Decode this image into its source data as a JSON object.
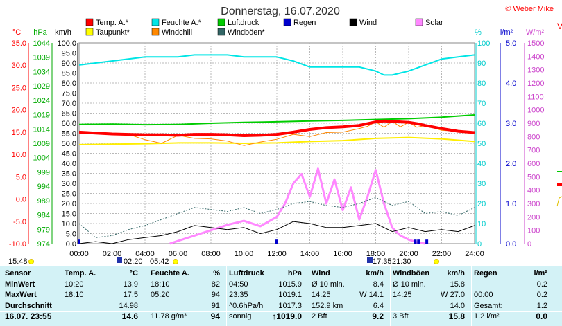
{
  "title": "Donnerstag, 16.07.2020",
  "copyright": "© Weber Mike",
  "edge_label": "V",
  "axes": {
    "temp": {
      "unit": "°C",
      "ticks": [
        "35.0",
        "30.0",
        "25.0",
        "20.0",
        "15.0",
        "10.0",
        "5.0",
        "0.0",
        "-5.0",
        "-10.0"
      ],
      "color": "#ff0000"
    },
    "press": {
      "unit": "hPa",
      "ticks": [
        "1044",
        "1039",
        "1034",
        "1029",
        "1024",
        "1019",
        "1014",
        "1009",
        "1004",
        "999",
        "994",
        "989",
        "984",
        "979",
        "974"
      ],
      "color": "#00aa00"
    },
    "wind": {
      "unit": "km/h",
      "ticks": [
        "100.0",
        "95.0",
        "90.0",
        "85.0",
        "80.0",
        "75.0",
        "70.0",
        "65.0",
        "60.0",
        "55.0",
        "50.0",
        "45.0",
        "40.0",
        "35.0",
        "30.0",
        "25.0",
        "20.0",
        "15.0",
        "10.0",
        "5.0",
        "0.0"
      ],
      "color": "#000000"
    },
    "hum": {
      "unit": "%",
      "ticks": [
        "100",
        "90",
        "80",
        "70",
        "60",
        "50",
        "40",
        "30",
        "20",
        "10",
        "0"
      ],
      "color": "#00cccc"
    },
    "rain": {
      "unit": "l/m²",
      "ticks": [
        "5.0",
        "4.0",
        "3.0",
        "2.0",
        "1.0",
        "0.0"
      ],
      "color": "#0000cc"
    },
    "solar": {
      "unit": "W/m²",
      "ticks": [
        "1500",
        "1400",
        "1300",
        "1200",
        "1100",
        "1000",
        "900",
        "800",
        "700",
        "600",
        "500",
        "400",
        "300",
        "200",
        "100",
        "0"
      ],
      "color": "#cc44cc"
    }
  },
  "legend": [
    {
      "label": "Temp. A.*",
      "color": "#ff0000",
      "text_color": "#ff0000"
    },
    {
      "label": "Feuchte A.*",
      "color": "#00e5e5",
      "text_color": "#00cccc"
    },
    {
      "label": "Luftdruck",
      "color": "#00cc00",
      "text_color": "#00aa00"
    },
    {
      "label": "Regen",
      "color": "#0000cc",
      "text_color": "#0000cc"
    },
    {
      "label": "Wind",
      "color": "#000000",
      "text_color": "#000000"
    },
    {
      "label": "Solar",
      "color": "#ff88ff",
      "text_color": "#cc44cc"
    },
    {
      "label": "Taupunkt*",
      "color": "#ffff00",
      "text_color": "#ff0000"
    },
    {
      "label": "Windchill",
      "color": "#ff8800",
      "text_color": "#ff0000"
    },
    {
      "label": "Windböen*",
      "color": "#336666",
      "text_color": "#000000"
    }
  ],
  "xticks": [
    "00:00",
    "02:00",
    "04:00",
    "06:00",
    "08:00",
    "10:00",
    "12:00",
    "14:00",
    "16:00",
    "18:00",
    "20:00",
    "22:00",
    "24:00"
  ],
  "markers": [
    "15:48",
    "02:20",
    "05:42",
    "17:35",
    "21:30"
  ],
  "chart_data": {
    "type": "line",
    "x_unit": "hours",
    "xlim": [
      0,
      24
    ],
    "series": [
      {
        "name": "Temp. A.*",
        "axis": "°C",
        "x": [
          0,
          1,
          2,
          3,
          4,
          5,
          6,
          7,
          8,
          9,
          10,
          11,
          12,
          13,
          14,
          15,
          16,
          17,
          17.5,
          18,
          18.5,
          19,
          19.5,
          20,
          20.5,
          21,
          22,
          23,
          24
        ],
        "y": [
          15.0,
          14.8,
          14.6,
          14.5,
          14.4,
          14.4,
          14.3,
          14.5,
          14.5,
          14.4,
          14.2,
          14.3,
          14.5,
          15.0,
          15.6,
          16.0,
          16.2,
          16.5,
          16.9,
          17.3,
          17.5,
          17.4,
          17.3,
          17.2,
          16.9,
          16.5,
          15.8,
          15.2,
          14.9
        ]
      },
      {
        "name": "Feuchte A.*",
        "axis": "%",
        "x": [
          0,
          1,
          2,
          3,
          4,
          5,
          6,
          7,
          8,
          9,
          10,
          11,
          12,
          13,
          14,
          15,
          16,
          17,
          18,
          18.5,
          19,
          19.5,
          20,
          21,
          22,
          23,
          24
        ],
        "y": [
          89,
          90,
          91,
          92,
          93,
          93,
          93,
          94,
          94,
          94,
          93,
          93,
          93,
          91,
          88,
          88,
          88,
          88,
          86,
          84,
          84,
          85,
          86,
          89,
          92,
          93,
          94
        ]
      },
      {
        "name": "Luftdruck",
        "axis": "hPa",
        "x": [
          0,
          2,
          4,
          6,
          8,
          10,
          12,
          14,
          16,
          18,
          20,
          22,
          24
        ],
        "y": [
          1015.6,
          1015.7,
          1015.5,
          1015.6,
          1016.0,
          1016.3,
          1016.5,
          1016.8,
          1017.0,
          1017.3,
          1017.6,
          1018.1,
          1018.9
        ]
      },
      {
        "name": "Taupunkt*",
        "axis": "°C",
        "x": [
          0,
          2,
          4,
          6,
          8,
          10,
          12,
          14,
          16,
          18,
          20,
          22,
          24
        ],
        "y": [
          12.2,
          12.3,
          12.4,
          12.6,
          12.6,
          12.5,
          12.6,
          12.9,
          13.1,
          13.6,
          13.8,
          13.5,
          12.9
        ]
      },
      {
        "name": "Windchill",
        "axis": "°C",
        "x": [
          0,
          1,
          2,
          3,
          4,
          5,
          6,
          7,
          8,
          9,
          10,
          11,
          12,
          13,
          14,
          15,
          16,
          17,
          17.5,
          18,
          18.5,
          19,
          19.5,
          20,
          20.5,
          21,
          22,
          23,
          24
        ],
        "y": [
          15.0,
          14.8,
          14.6,
          14.5,
          13.3,
          12.5,
          14.3,
          13.6,
          13.5,
          13.0,
          12.0,
          12.8,
          13.4,
          14.5,
          14.0,
          14.9,
          15.0,
          15.8,
          16.3,
          17.3,
          16.1,
          17.4,
          16.2,
          17.2,
          16.1,
          16.5,
          15.4,
          15.2,
          14.9
        ]
      },
      {
        "name": "Wind",
        "axis": "km/h",
        "x": [
          0,
          1,
          2,
          3,
          4,
          5,
          6,
          7,
          8,
          9,
          10,
          11,
          12,
          13,
          14,
          15,
          16,
          17,
          18,
          19,
          20,
          21,
          22,
          23,
          24
        ],
        "y": [
          0,
          1,
          0,
          2,
          3,
          4,
          6,
          9,
          8,
          7,
          8,
          5,
          7,
          11,
          10,
          8,
          8,
          9,
          10,
          6,
          8,
          6,
          7,
          6,
          9
        ]
      },
      {
        "name": "Windböen*",
        "axis": "km/h",
        "x": [
          0,
          1,
          2,
          3,
          4,
          5,
          6,
          7,
          8,
          9,
          10,
          11,
          12,
          13,
          14,
          15,
          16,
          17,
          18,
          19,
          20,
          21,
          22,
          23,
          24
        ],
        "y": [
          10,
          3,
          4,
          7,
          9,
          12,
          15,
          18,
          17,
          16,
          18,
          15,
          17,
          20,
          21,
          19,
          18,
          20,
          23,
          19,
          21,
          15,
          16,
          14,
          18
        ]
      },
      {
        "name": "Solar",
        "axis": "W/m²",
        "x": [
          5.5,
          6,
          7,
          8,
          9,
          10,
          11,
          12,
          12.5,
          13,
          13.5,
          14,
          14.5,
          15,
          15.5,
          16,
          16.5,
          17,
          17.5,
          18,
          18.5,
          19,
          19.5,
          20,
          20.5,
          21
        ],
        "y": [
          0,
          20,
          60,
          100,
          140,
          170,
          130,
          200,
          300,
          450,
          520,
          350,
          560,
          300,
          480,
          250,
          420,
          180,
          350,
          550,
          300,
          120,
          60,
          30,
          10,
          0
        ]
      },
      {
        "name": "Regen",
        "axis": "l/m²",
        "x": [
          0,
          12.0,
          20.4,
          20.6,
          21.1
        ],
        "y": [
          0.1,
          0.1,
          0.1,
          0.1,
          0.1
        ]
      }
    ]
  },
  "stats": {
    "cols": [
      {
        "head": [
          "Sensor",
          ""
        ],
        "rows": [
          [
            "MinWert",
            ""
          ],
          [
            "MaxWert",
            ""
          ],
          [
            "Durchschnitt",
            ""
          ]
        ],
        "total": [
          "16.07. 23:55",
          ""
        ]
      },
      {
        "head": [
          "Temp. A.",
          "°C"
        ],
        "rows": [
          [
            "10:20",
            "13.9"
          ],
          [
            "18:10",
            "17.5"
          ],
          [
            "",
            "14.98"
          ]
        ],
        "total": [
          "",
          "14.6"
        ]
      },
      {
        "head": [
          "Feuchte A.",
          "%"
        ],
        "rows": [
          [
            "18:10",
            "82"
          ],
          [
            "05:20",
            "94"
          ],
          [
            "",
            "91"
          ]
        ],
        "total": [
          "11.78 g/m³",
          "94"
        ]
      },
      {
        "head": [
          "Luftdruck",
          "hPa"
        ],
        "rows": [
          [
            "04:50",
            "1015.9"
          ],
          [
            "23:35",
            "1019.1"
          ],
          [
            "^0.6hPa/h",
            "1017.3"
          ]
        ],
        "total": [
          "sonnig",
          "↑1019.0"
        ]
      },
      {
        "head": [
          "Wind",
          "km/h"
        ],
        "rows": [
          [
            "Ø 10 min.",
            "8.4"
          ],
          [
            "14:25",
            "W 14.1"
          ],
          [
            "152.9 km",
            "6.4"
          ]
        ],
        "total": [
          "2 Bft",
          "9.2"
        ]
      },
      {
        "head": [
          "Windböen",
          "km/h"
        ],
        "rows": [
          [
            "Ø 10 min.",
            "15.8"
          ],
          [
            "14:25",
            "W 27.0"
          ],
          [
            "",
            "14.0"
          ]
        ],
        "total": [
          "3 Bft",
          "15.8"
        ]
      },
      {
        "head": [
          "Regen",
          "l/m²"
        ],
        "rows": [
          [
            "",
            "0.2"
          ],
          [
            "00:00",
            "0.2"
          ],
          [
            "Gesamt:",
            "1.2"
          ]
        ],
        "total": [
          "1.2 l/m²",
          "0.0"
        ]
      }
    ]
  }
}
